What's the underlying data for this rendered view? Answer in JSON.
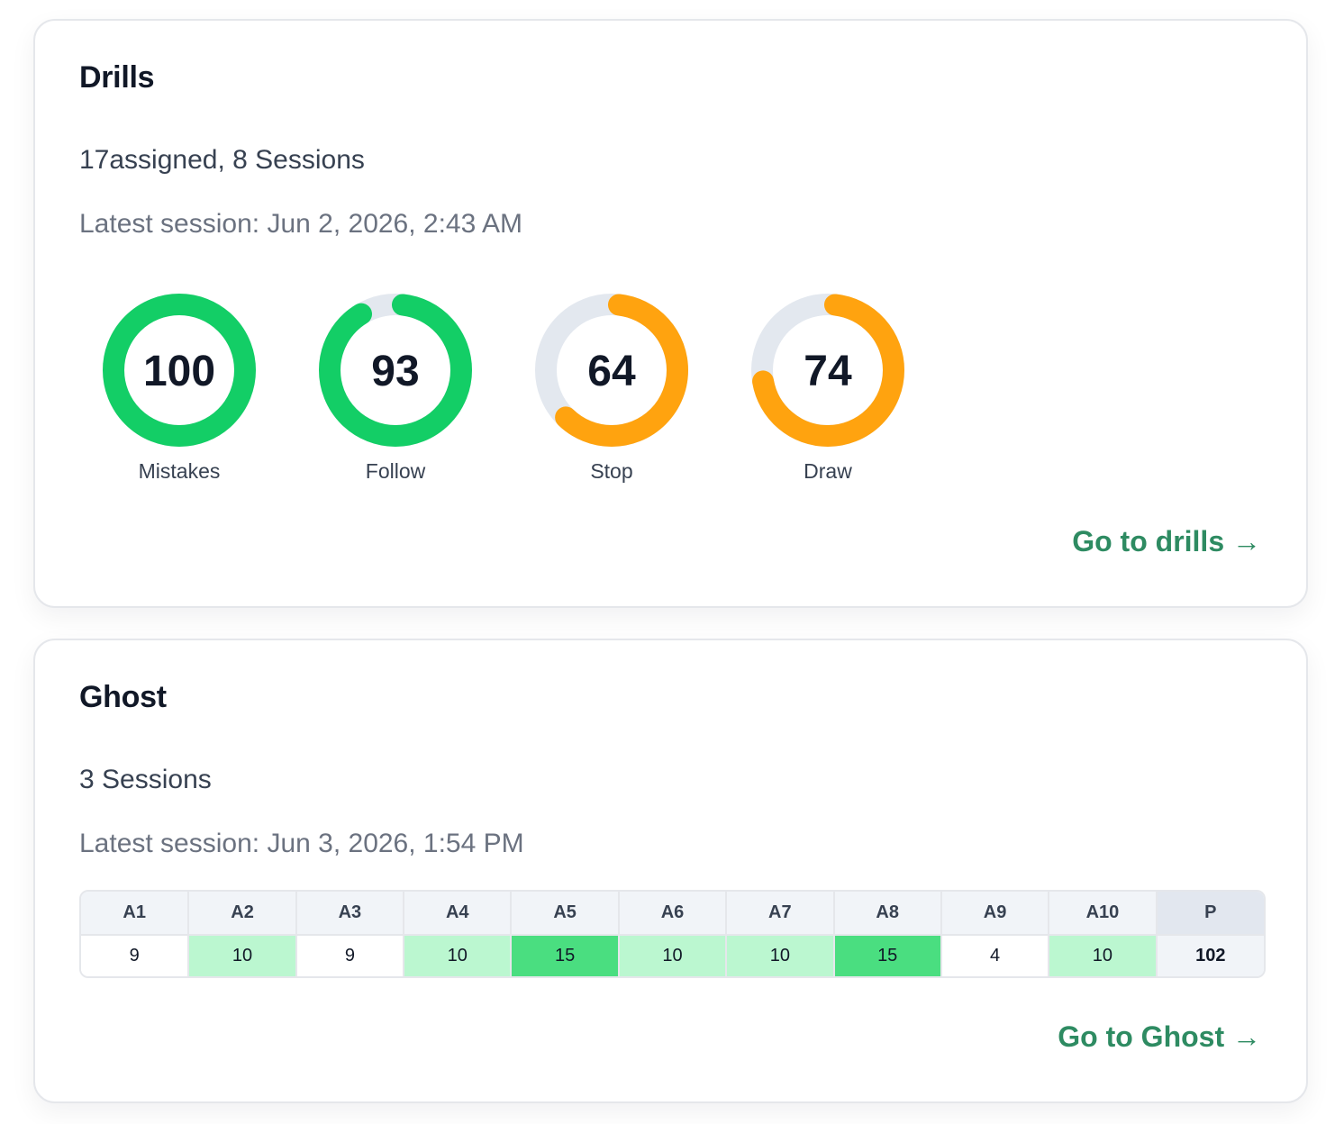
{
  "drills": {
    "title": "Drills",
    "summary": "17assigned, 8 Sessions",
    "latest": "Latest session: Jun 2, 2026, 2:43 AM",
    "link": "Go to drills →",
    "gauges": [
      {
        "label": "Mistakes",
        "value": 100,
        "color": "#13ce66"
      },
      {
        "label": "Follow",
        "value": 93,
        "color": "#13ce66"
      },
      {
        "label": "Stop",
        "value": 64,
        "color": "#ffa30f"
      },
      {
        "label": "Draw",
        "value": 74,
        "color": "#ffa30f"
      }
    ],
    "track_color": "#e3e8ef"
  },
  "ghost": {
    "title": "Ghost",
    "summary": "3 Sessions",
    "latest": "Latest session: Jun 3, 2026, 1:54 PM",
    "link": "Go to Ghost →",
    "table": {
      "columns": [
        "A1",
        "A2",
        "A3",
        "A4",
        "A5",
        "A6",
        "A7",
        "A8",
        "A9",
        "A10",
        "P"
      ],
      "values": [
        "9",
        "10",
        "9",
        "10",
        "15",
        "10",
        "10",
        "15",
        "4",
        "10",
        "102"
      ],
      "levels": [
        0,
        1,
        0,
        1,
        2,
        1,
        1,
        2,
        0,
        1,
        -1
      ]
    }
  }
}
